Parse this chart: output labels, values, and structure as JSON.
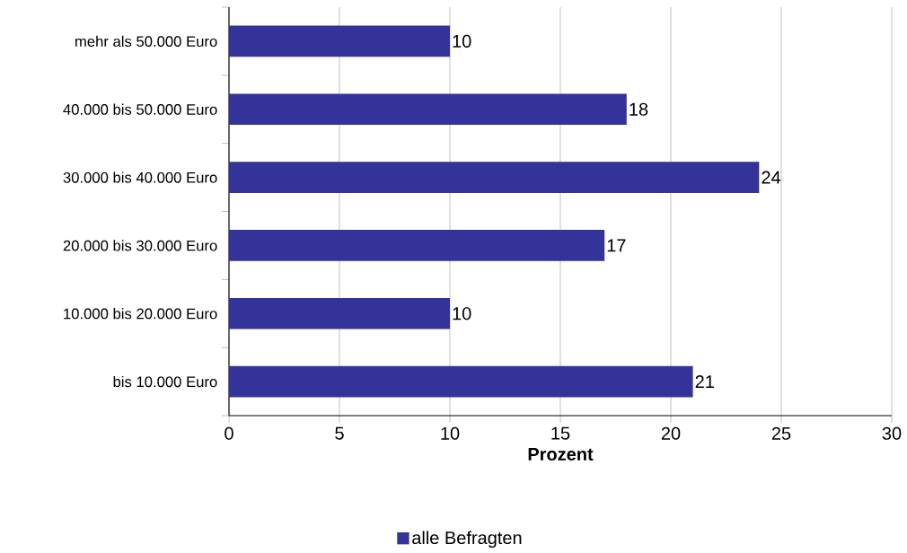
{
  "chart_data": {
    "type": "bar",
    "orientation": "horizontal",
    "xlabel": "Prozent",
    "categories": [
      "mehr als 50.000 Euro",
      "40.000 bis 50.000 Euro",
      "30.000 bis 40.000 Euro",
      "20.000 bis 30.000 Euro",
      "10.000 bis 20.000 Euro",
      "bis 10.000 Euro"
    ],
    "series": [
      {
        "name": "alle Befragten",
        "color": "#333399",
        "values": [
          10,
          18,
          24,
          17,
          10,
          21
        ]
      }
    ],
    "xlim": [
      0,
      30
    ],
    "xticks": [
      0,
      5,
      10,
      15,
      20,
      25,
      30
    ],
    "grid": "x",
    "legend": "bottom",
    "data_labels": true
  }
}
